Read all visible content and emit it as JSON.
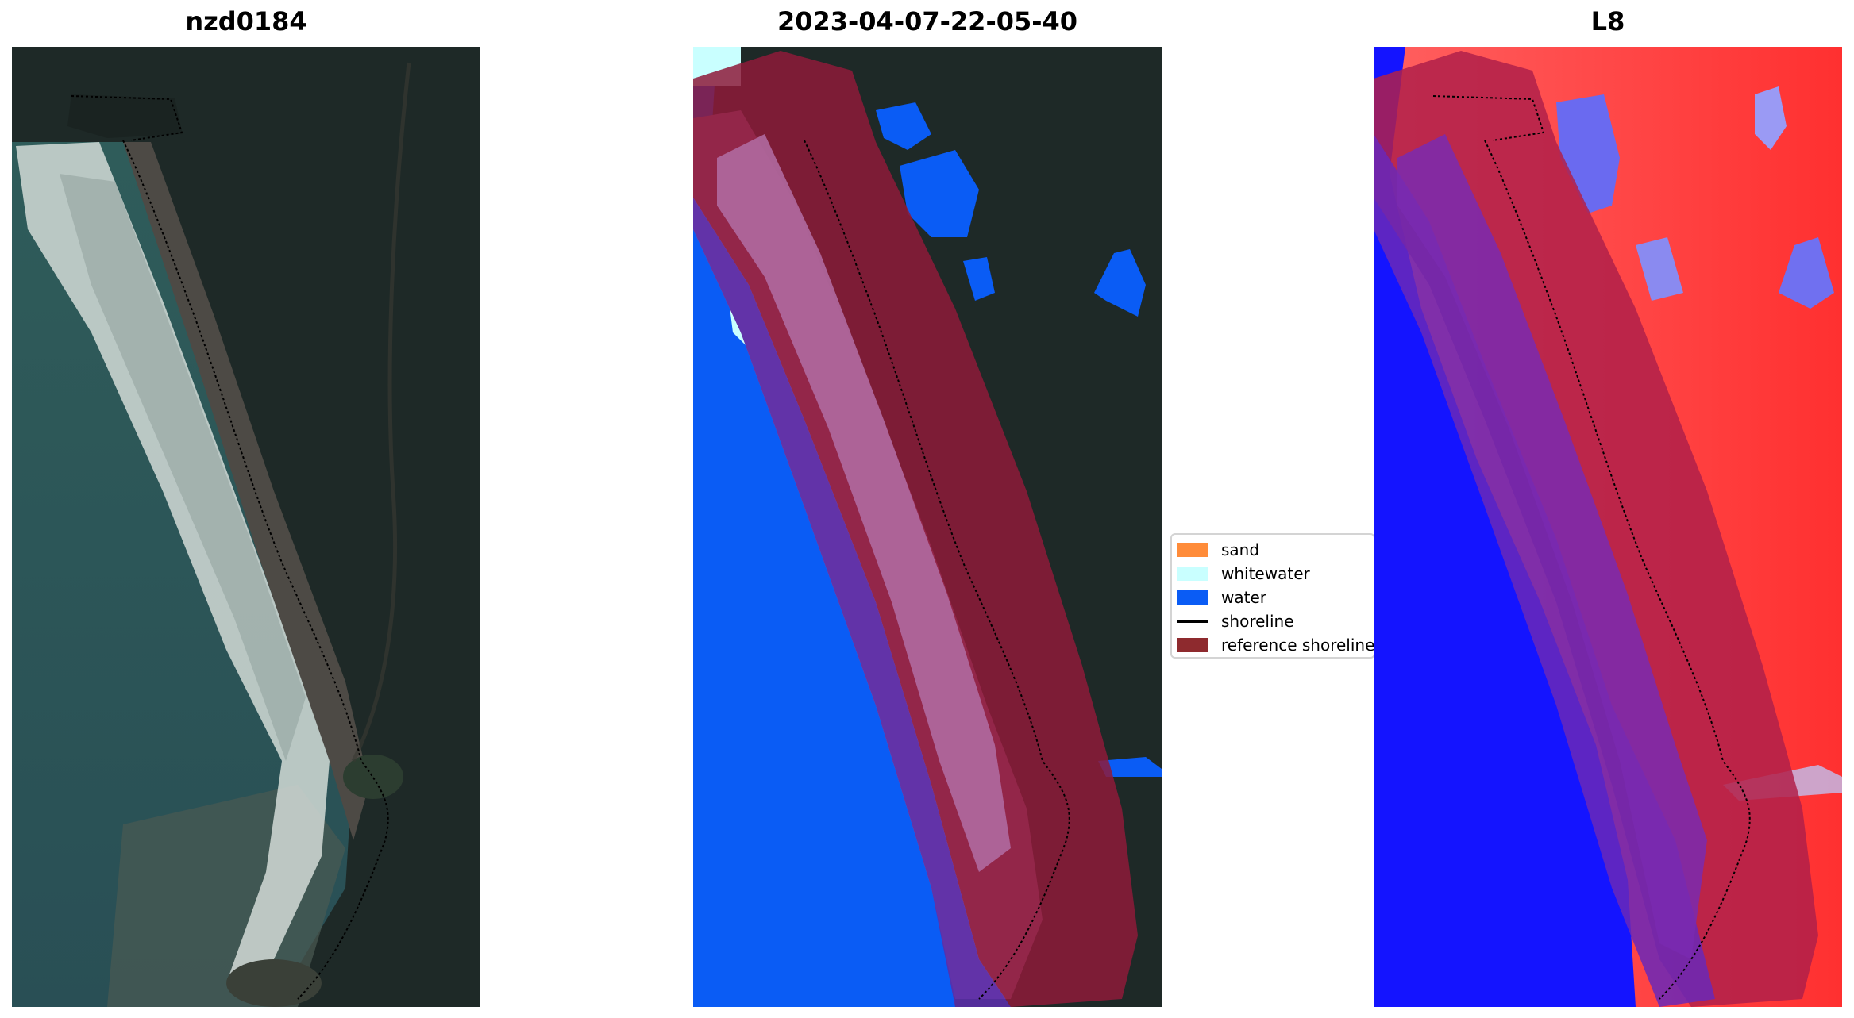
{
  "panels": [
    {
      "title": "nzd0184",
      "kind": "rgb"
    },
    {
      "title": "2023-04-07-22-05-40",
      "kind": "classification"
    },
    {
      "title": "L8",
      "kind": "index"
    }
  ],
  "legend": {
    "items": [
      {
        "label": "sand",
        "color": "#ff8c3a",
        "type": "patch"
      },
      {
        "label": "whitewater",
        "color": "#c9ffff",
        "type": "patch"
      },
      {
        "label": "water",
        "color": "#0a5cf5",
        "type": "patch"
      },
      {
        "label": "shoreline",
        "color": "#000000",
        "type": "line"
      },
      {
        "label": "reference shoreline",
        "color": "#8e2a2e",
        "type": "patch"
      }
    ]
  },
  "colors": {
    "land_dark": "#1f2a28",
    "sea_rgb": "#2e5a5c",
    "water": "#0a5cf5",
    "whitewater": "#c9ffff",
    "reference_shoreline": "#8e2a2e",
    "index_red": "#ff2020",
    "index_blue": "#1010ff"
  }
}
